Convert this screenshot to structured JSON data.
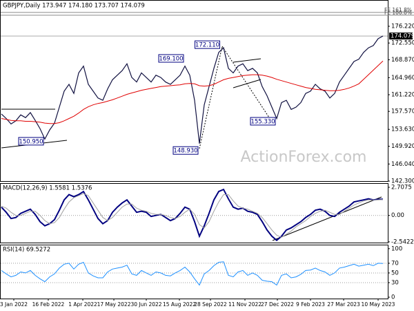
{
  "chart_data": [
    {
      "type": "line",
      "title": "GBPJPY,Daily  173.947 174.180 173.707 174.079",
      "watermark": "ActionForex.com",
      "xlim": [
        0,
        79
      ],
      "ylim": [
        142.3,
        181.67
      ],
      "yticks": [
        {
          "value": 176.22,
          "label": "176.220"
        },
        {
          "value": 172.55,
          "label": "172.550"
        },
        {
          "value": 168.87,
          "label": "168.870"
        },
        {
          "value": 164.96,
          "label": "164.960"
        },
        {
          "value": 161.22,
          "label": "161.220"
        },
        {
          "value": 157.57,
          "label": "157.570"
        },
        {
          "value": 153.63,
          "label": "153.630"
        },
        {
          "value": 149.92,
          "label": "149.920"
        },
        {
          "value": 146.04,
          "label": "146.040"
        },
        {
          "value": 142.3,
          "label": "142.300"
        }
      ],
      "grid": false,
      "last_price": 174.079,
      "levels": [
        {
          "value": 179.25,
          "label": "FE 161.8%"
        },
        {
          "value": 178.64,
          "label": "FE 100.0%"
        }
      ],
      "annotations": [
        {
          "x": 45.5,
          "value": 172.11,
          "label": "172.110"
        },
        {
          "x": 38,
          "value": 169.1,
          "label": "169.100"
        },
        {
          "x": 9,
          "value": 150.95,
          "label": "150.950"
        },
        {
          "x": 41,
          "value": 148.93,
          "label": "148.930"
        },
        {
          "x": 57,
          "value": 155.33,
          "label": "155.330"
        }
      ],
      "series": [
        {
          "color": "#101040",
          "width": 1.2,
          "values": [
            157.0,
            156.0,
            154.8,
            155.5,
            156.8,
            156.2,
            157.3,
            155.6,
            153.8,
            151.5,
            153.5,
            155.0,
            158.5,
            162.0,
            163.5,
            161.5,
            166.0,
            167.5,
            163.5,
            162.0,
            160.5,
            160.0,
            162.5,
            164.5,
            165.5,
            166.5,
            168.0,
            165.0,
            164.0,
            166.0,
            165.0,
            164.0,
            165.5,
            165.0,
            164.0,
            163.5,
            164.5,
            165.5,
            167.5,
            165.5,
            160.0,
            150.5,
            159.0,
            163.0,
            167.0,
            170.5,
            171.5,
            167.0,
            166.0,
            167.5,
            168.0,
            166.5,
            167.0,
            166.0,
            163.0,
            161.0,
            158.5,
            156.0,
            159.5,
            160.0,
            158.0,
            158.5,
            159.5,
            161.5,
            162.0,
            163.5,
            162.5,
            162.0,
            160.5,
            161.5,
            164.0,
            165.5,
            167.0,
            168.5,
            169.0,
            170.5,
            171.5,
            172.0,
            173.5,
            174.079
          ]
        },
        {
          "color": "#e00000",
          "width": 1,
          "values": [
            156.0,
            155.8,
            155.6,
            155.5,
            155.5,
            155.4,
            155.4,
            155.3,
            155.2,
            155.0,
            154.9,
            154.9,
            155.1,
            155.5,
            156.0,
            156.5,
            157.2,
            158.0,
            158.6,
            159.0,
            159.3,
            159.5,
            159.8,
            160.1,
            160.5,
            160.9,
            161.3,
            161.6,
            161.9,
            162.2,
            162.4,
            162.6,
            162.8,
            163.0,
            163.1,
            163.2,
            163.3,
            163.4,
            163.6,
            163.7,
            163.6,
            163.2,
            163.1,
            163.2,
            163.5,
            164.0,
            164.5,
            164.8,
            165.0,
            165.2,
            165.4,
            165.5,
            165.6,
            165.6,
            165.5,
            165.3,
            165.0,
            164.6,
            164.3,
            164.0,
            163.7,
            163.4,
            163.1,
            162.8,
            162.6,
            162.4,
            162.3,
            162.2,
            162.1,
            162.1,
            162.2,
            162.4,
            162.7,
            163.1,
            163.6,
            164.6,
            165.6,
            166.6,
            167.6,
            168.6
          ]
        }
      ]
    },
    {
      "type": "line",
      "title": "MACD(12,26,9) 1.5581 1.5376",
      "xlim": [
        0,
        79
      ],
      "ylim": [
        -2.68,
        3.04
      ],
      "yticks": [
        2.7075,
        {
          "value": 0,
          "label": "0.00"
        },
        -2.5422
      ],
      "grid": true,
      "series": [
        {
          "color": "#000080",
          "width": 2,
          "values": [
            0.8,
            0.3,
            -0.3,
            -0.2,
            0.2,
            0.4,
            0.6,
            0.1,
            -0.6,
            -1.0,
            -0.8,
            -0.4,
            0.5,
            1.5,
            2.0,
            1.8,
            2.0,
            2.3,
            1.5,
            0.6,
            -0.3,
            -0.8,
            -0.5,
            0.3,
            0.8,
            1.2,
            1.5,
            0.9,
            0.3,
            0.4,
            0.3,
            -0.1,
            0.0,
            0.1,
            -0.2,
            -0.5,
            -0.3,
            0.2,
            0.8,
            0.6,
            -0.6,
            -2.0,
            -1.0,
            0.2,
            1.5,
            2.3,
            2.5,
            1.6,
            0.8,
            0.6,
            0.7,
            0.4,
            0.3,
            0.1,
            -0.6,
            -1.4,
            -2.0,
            -2.4,
            -2.0,
            -1.4,
            -1.2,
            -0.9,
            -0.6,
            -0.2,
            0.1,
            0.5,
            0.6,
            0.4,
            0.0,
            -0.1,
            0.3,
            0.6,
            0.9,
            1.3,
            1.4,
            1.5,
            1.6,
            1.5,
            1.55,
            1.5581
          ]
        },
        {
          "color": "#a0a0a0",
          "width": 1,
          "values": [
            0.9,
            0.7,
            0.3,
            0.0,
            0.0,
            0.2,
            0.4,
            0.4,
            0.0,
            -0.5,
            -0.8,
            -0.7,
            -0.2,
            0.6,
            1.3,
            1.7,
            1.9,
            2.1,
            1.9,
            1.2,
            0.5,
            -0.2,
            -0.5,
            -0.2,
            0.3,
            0.8,
            1.1,
            1.1,
            0.7,
            0.5,
            0.4,
            0.2,
            0.1,
            0.1,
            0.0,
            -0.2,
            -0.3,
            -0.1,
            0.3,
            0.6,
            0.1,
            -0.9,
            -1.2,
            -0.6,
            0.4,
            1.3,
            2.0,
            2.0,
            1.4,
            0.9,
            0.7,
            0.6,
            0.4,
            0.2,
            -0.2,
            -0.8,
            -1.4,
            -1.9,
            -2.1,
            -1.8,
            -1.5,
            -1.1,
            -0.8,
            -0.5,
            -0.1,
            0.2,
            0.4,
            0.5,
            0.3,
            0.1,
            0.1,
            0.4,
            0.7,
            1.0,
            1.2,
            1.4,
            1.5,
            1.5,
            1.5,
            1.5376
          ]
        }
      ]
    },
    {
      "type": "line",
      "title": "RSI(14) 69.5272",
      "xlim": [
        0,
        79
      ],
      "ylim": [
        -2.8,
        106.9
      ],
      "yticks": [
        100,
        70,
        50,
        30,
        0
      ],
      "grid": true,
      "xticks": [
        {
          "value": 2.57,
          "label": "3 Jan 2022"
        },
        {
          "value": 9.71,
          "label": "16 Feb 2022"
        },
        {
          "value": 16.86,
          "label": "1 Apr 2022"
        },
        {
          "value": 23.29,
          "label": "17 May 2022"
        },
        {
          "value": 30,
          "label": "30 Jun 2022"
        },
        {
          "value": 36.86,
          "label": "15 Aug 2022"
        },
        {
          "value": 43.29,
          "label": "28 Sep 2022"
        },
        {
          "value": 50.43,
          "label": "11 Nov 2022"
        },
        {
          "value": 57.14,
          "label": "27 Dec 2022"
        },
        {
          "value": 64,
          "label": "9 Feb 2023"
        },
        {
          "value": 70.86,
          "label": "27 Mar 2023"
        },
        {
          "value": 78,
          "label": "10 May 2023"
        }
      ],
      "series": [
        {
          "color": "#1e90ff",
          "width": 1,
          "values": [
            55,
            48,
            42,
            45,
            52,
            50,
            55,
            45,
            38,
            32,
            42,
            48,
            60,
            68,
            70,
            58,
            68,
            72,
            50,
            44,
            40,
            40,
            52,
            58,
            60,
            62,
            66,
            48,
            45,
            55,
            50,
            45,
            52,
            50,
            45,
            44,
            50,
            55,
            62,
            52,
            38,
            25,
            48,
            55,
            65,
            72,
            73,
            45,
            42,
            52,
            55,
            45,
            50,
            45,
            35,
            33,
            32,
            25,
            45,
            48,
            40,
            42,
            47,
            55,
            56,
            60,
            55,
            52,
            45,
            50,
            60,
            62,
            65,
            68,
            64,
            66,
            68,
            65,
            70,
            69.5272
          ]
        }
      ]
    }
  ]
}
